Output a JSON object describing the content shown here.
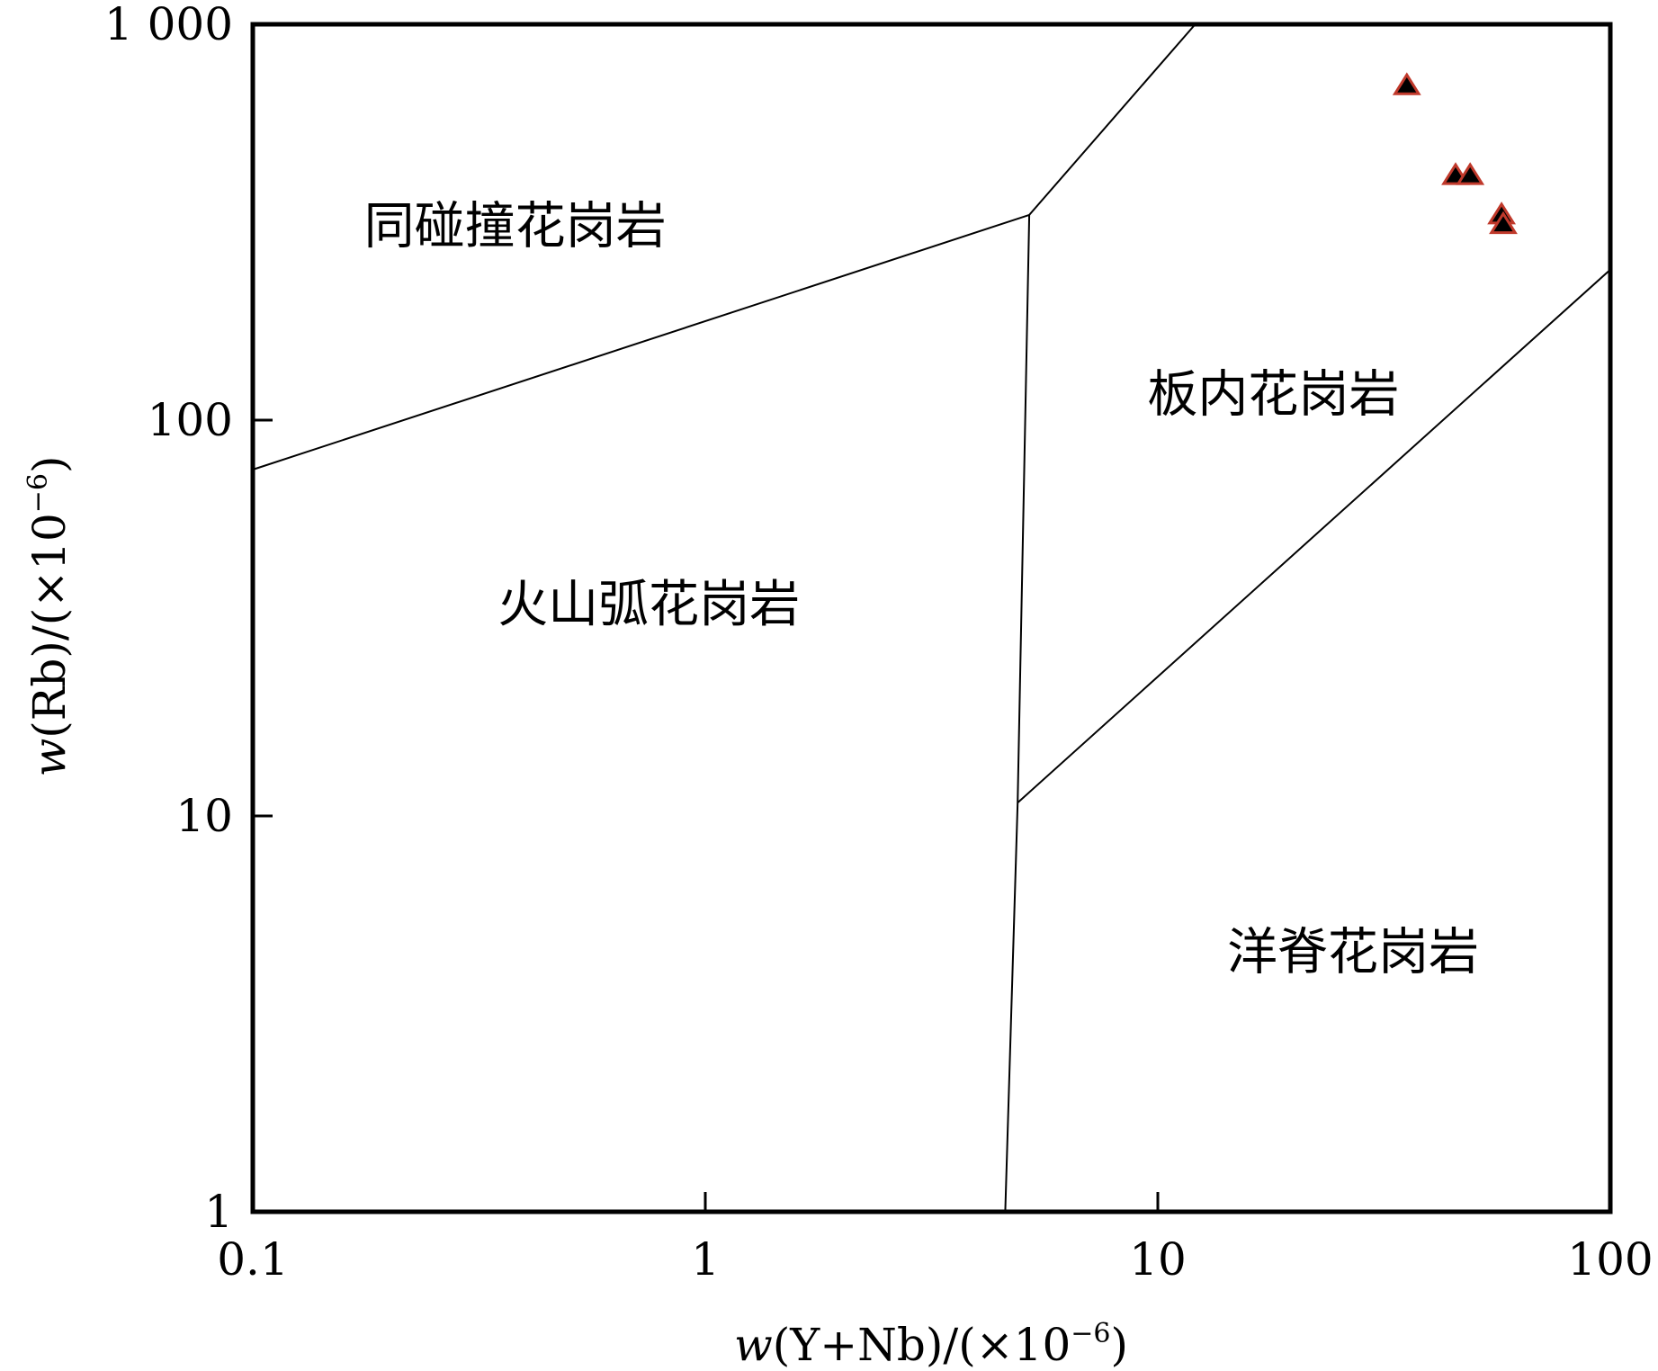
{
  "chart_data": {
    "type": "scatter",
    "title": "",
    "xlabel": "w(Y+Nb)/(×10⁻⁶)",
    "ylabel": "w(Rb)/(×10⁻⁶)",
    "xscale": "log",
    "yscale": "log",
    "xlim": [
      0.1,
      100
    ],
    "ylim": [
      1,
      1000
    ],
    "x_ticks": [
      {
        "value": 0.1,
        "label": "0.1"
      },
      {
        "value": 1,
        "label": "1"
      },
      {
        "value": 10,
        "label": "10"
      },
      {
        "value": 100,
        "label": "100"
      }
    ],
    "y_ticks": [
      {
        "value": 1,
        "label": "1"
      },
      {
        "value": 10,
        "label": "10"
      },
      {
        "value": 100,
        "label": "100"
      },
      {
        "value": 1000,
        "label": "1 000"
      }
    ],
    "grid": false,
    "legend": "none",
    "boundaries": [
      {
        "points": [
          [
            0.1,
            75
          ],
          [
            5.2,
            330
          ],
          [
            12.1,
            1000
          ]
        ]
      },
      {
        "points": [
          [
            5.2,
            330
          ],
          [
            4.9,
            10.8
          ],
          [
            4.6,
            1
          ]
        ]
      },
      {
        "points": [
          [
            4.9,
            10.8
          ],
          [
            100,
            240
          ]
        ]
      }
    ],
    "regions": [
      {
        "label": "同碰撞花岗岩",
        "x": 0.38,
        "y": 280
      },
      {
        "label": "板内花岗岩",
        "x": 18,
        "y": 105
      },
      {
        "label": "火山弧花岗岩",
        "x": 0.75,
        "y": 31
      },
      {
        "label": "洋脊花岗岩",
        "x": 27,
        "y": 4.1
      }
    ],
    "series": [
      {
        "marker": "triangle",
        "fill": "#000000",
        "edge": "#c0392b",
        "points": [
          {
            "x": 35.5,
            "y": 700
          },
          {
            "x": 45.5,
            "y": 415
          },
          {
            "x": 49.0,
            "y": 415
          },
          {
            "x": 57.5,
            "y": 330
          },
          {
            "x": 58.0,
            "y": 312
          }
        ]
      }
    ]
  }
}
